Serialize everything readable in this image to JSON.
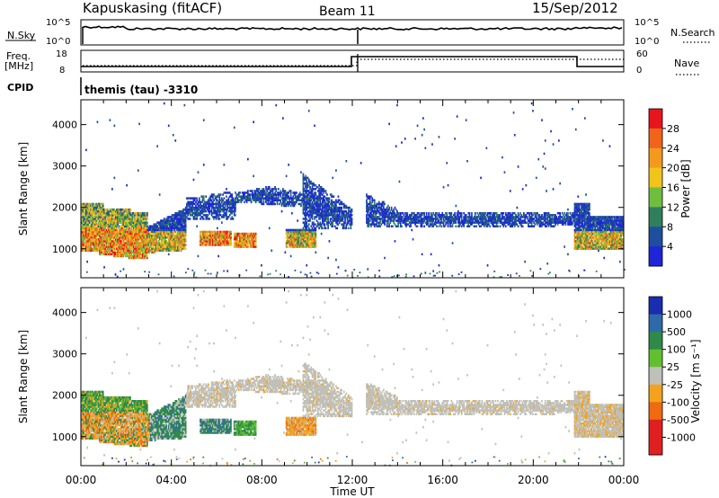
{
  "header": {
    "station": "Kapuskasing (fitACF)",
    "beam": "Beam 11",
    "date": "15/Sep/2012"
  },
  "top_panels": {
    "nsky_label": "N.Sky",
    "nsky_ticks": [
      "10^5",
      "10^0"
    ],
    "nsearch_label": "N.Search",
    "nsearch_ticks": [
      "10^5",
      "10^0"
    ],
    "freq_label": "Freq.",
    "freq_unit": "[MHz]",
    "freq_ticks": [
      "18",
      "8"
    ],
    "nave_label": "Nave",
    "nave_ticks": [
      "60",
      "0"
    ],
    "cpid_label": "CPID",
    "cpid_text": "themis (tau) -3310"
  },
  "chart_data": [
    {
      "type": "heatmap",
      "name": "power-panel",
      "ylabel": "Slant Range [km]",
      "yticks": [
        1000,
        2000,
        3000,
        4000
      ],
      "ylim": [
        300,
        4600
      ],
      "xlim": [
        0,
        24
      ],
      "colorbar": {
        "label": "Power [dB]",
        "ticks": [
          "28",
          "24",
          "20",
          "16",
          "12",
          "8",
          "4"
        ],
        "colors": [
          "#1e26d8",
          "#1e4f9e",
          "#2f7f5e",
          "#6fbe3e",
          "#f0c419",
          "#f39a1e",
          "#f0641b",
          "#e8141e"
        ]
      },
      "regions": [
        {
          "t0": 0.0,
          "t1": 2.8,
          "r0": 700,
          "r1": 2100,
          "level": "mix-high"
        },
        {
          "t0": 2.8,
          "t1": 6.5,
          "r0": 900,
          "r1": 2000,
          "level": "mix-med"
        },
        {
          "t0": 6.5,
          "t1": 12.0,
          "r0": 900,
          "r1": 2400,
          "level": "mix-low"
        },
        {
          "t0": 12.5,
          "t1": 21.8,
          "r0": 1500,
          "r1": 2300,
          "level": "low"
        },
        {
          "t0": 21.8,
          "t1": 24.0,
          "r0": 900,
          "r1": 2000,
          "level": "mix-med"
        }
      ]
    },
    {
      "type": "heatmap",
      "name": "velocity-panel",
      "ylabel": "Slant Range [km]",
      "yticks": [
        1000,
        2000,
        3000,
        4000
      ],
      "ylim": [
        300,
        4600
      ],
      "xlim": [
        0,
        24
      ],
      "xticks": [
        "00:00",
        "04:00",
        "08:00",
        "12:00",
        "16:00",
        "20:00",
        "00:00"
      ],
      "xlabel": "Time UT",
      "colorbar": {
        "label": "Velocity [m s⁻¹]",
        "ticks": [
          "1000",
          "500",
          "100",
          "25",
          "-25",
          "-100",
          "-500",
          "-1000"
        ],
        "colors": [
          "#1a2cb0",
          "#2f6aa8",
          "#2f8a4a",
          "#62c030",
          "#c0c0b8",
          "#f3a21e",
          "#f06a10",
          "#e02020",
          "#e02020"
        ]
      }
    }
  ]
}
